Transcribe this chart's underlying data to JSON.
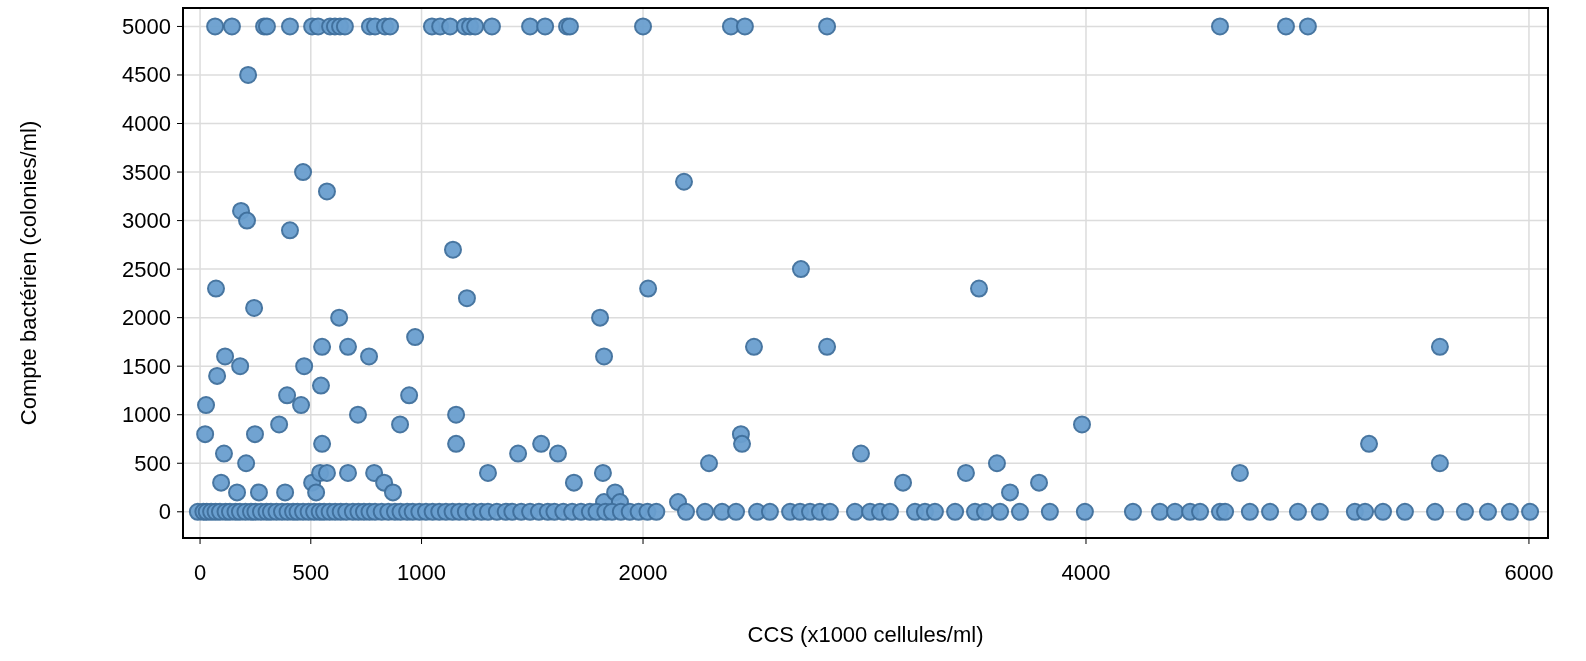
{
  "chart_data": {
    "type": "scatter",
    "xlabel": "CCS (x1000 cellules/ml)",
    "ylabel": "Compte bactérien (colonies/ml)",
    "xlim": [
      -77,
      6086
    ],
    "ylim": [
      -270,
      5190
    ],
    "xticks": [
      0,
      500,
      1000,
      2000,
      4000,
      6000
    ],
    "yticks": [
      0,
      500,
      1000,
      1500,
      2000,
      2500,
      3000,
      3500,
      4000,
      4500,
      5000
    ],
    "grid": true,
    "marker": "circle",
    "series": [
      {
        "color": "#6a9fcf",
        "x": [
          68,
          144,
          289,
          302,
          406,
          506,
          533,
          587,
          609,
          632,
          654,
          767,
          790,
          835,
          858,
          1047,
          1084,
          1129,
          1196,
          1219,
          1242,
          1318,
          1490,
          1558,
          1657,
          1670,
          2000,
          2397,
          2460,
          2831,
          4605,
          4903,
          5002,
          23,
          27,
          72,
          77,
          113,
          108,
          95,
          167,
          181,
          185,
          212,
          217,
          244,
          248,
          208,
          266,
          357,
          393,
          406,
          384,
          456,
          465,
          470,
          506,
          524,
          542,
          551,
          551,
          546,
          573,
          573,
          628,
          668,
          668,
          713,
          763,
          786,
          831,
          871,
          903,
          944,
          971,
          1142,
          1156,
          1156,
          1205,
          1300,
          1436,
          1540,
          1616,
          1688,
          1806,
          1819,
          1824,
          1824,
          1874,
          1896,
          2023,
          2158,
          2185,
          2298,
          2442,
          2447,
          2501,
          2713,
          2831,
          2984,
          3174,
          3458,
          3517,
          3598,
          3657,
          3788,
          3982,
          4695,
          5278,
          5598,
          5598,
          -10,
          15,
          30,
          50,
          70,
          90,
          115,
          135,
          160,
          180,
          205,
          230,
          250,
          275,
          300,
          320,
          345,
          370,
          395,
          420,
          440,
          465,
          490,
          515,
          540,
          560,
          585,
          610,
          635,
          660,
          690,
          715,
          740,
          765,
          790,
          820,
          850,
          880,
          905,
          935,
          960,
          990,
          1020,
          1050,
          1080,
          1110,
          1140,
          1170,
          1200,
          1235,
          1270,
          1300,
          1340,
          1380,
          1410,
          1450,
          1490,
          1530,
          1570,
          1600,
          1640,
          1680,
          1720,
          1760,
          1790,
          1830,
          1860,
          1900,
          1940,
          1980,
          2020,
          2060,
          2194,
          2280,
          2357,
          2420,
          2515,
          2573,
          2664,
          2709,
          2754,
          2799,
          2844,
          2957,
          3025,
          3070,
          3115,
          3228,
          3273,
          3318,
          3409,
          3499,
          3544,
          3612,
          3702,
          3837,
          3995,
          4212,
          4334,
          4402,
          4470,
          4515,
          4605,
          4628,
          4740,
          4831,
          4957,
          5056,
          5214,
          5260,
          5341,
          5440,
          5576,
          5711,
          5815,
          5914,
          6005
        ],
        "values": [
          5000,
          5000,
          5000,
          5000,
          5000,
          5000,
          5000,
          5000,
          5000,
          5000,
          5000,
          5000,
          5000,
          5000,
          5000,
          5000,
          5000,
          5000,
          5000,
          5000,
          5000,
          5000,
          5000,
          5000,
          5000,
          5000,
          5000,
          5000,
          5000,
          5000,
          5000,
          5000,
          5000,
          800,
          1100,
          2300,
          1400,
          1600,
          600,
          300,
          200,
          1500,
          3100,
          3000,
          4500,
          2100,
          800,
          500,
          200,
          900,
          1200,
          2900,
          200,
          1100,
          3500,
          1500,
          300,
          200,
          400,
          700,
          1700,
          1300,
          3300,
          400,
          2000,
          1700,
          400,
          1000,
          1600,
          400,
          300,
          200,
          900,
          1200,
          1800,
          2700,
          1000,
          700,
          2200,
          400,
          600,
          700,
          600,
          300,
          2000,
          400,
          1600,
          100,
          200,
          100,
          2300,
          100,
          3400,
          500,
          800,
          700,
          1700,
          2500,
          1700,
          600,
          300,
          400,
          2300,
          500,
          200,
          300,
          900,
          400,
          700,
          1700,
          500,
          0,
          0,
          0,
          0,
          0,
          0,
          0,
          0,
          0,
          0,
          0,
          0,
          0,
          0,
          0,
          0,
          0,
          0,
          0,
          0,
          0,
          0,
          0,
          0,
          0,
          0,
          0,
          0,
          0,
          0,
          0,
          0,
          0,
          0,
          0,
          0,
          0,
          0,
          0,
          0,
          0,
          0,
          0,
          0,
          0,
          0,
          0,
          0,
          0,
          0,
          0,
          0,
          0,
          0,
          0,
          0,
          0,
          0,
          0,
          0,
          0,
          0,
          0,
          0,
          0,
          0,
          0,
          0,
          0,
          0,
          0,
          0,
          0,
          0,
          0,
          0,
          0,
          0,
          0,
          0,
          0,
          0,
          0,
          0,
          0,
          0,
          0,
          0,
          0,
          0,
          0,
          0,
          0,
          0,
          0,
          0,
          0,
          0,
          0,
          0,
          0,
          0,
          0,
          0,
          0,
          0,
          0,
          0,
          0,
          0,
          0,
          0,
          0,
          0,
          0,
          0,
          0
        ]
      }
    ]
  }
}
